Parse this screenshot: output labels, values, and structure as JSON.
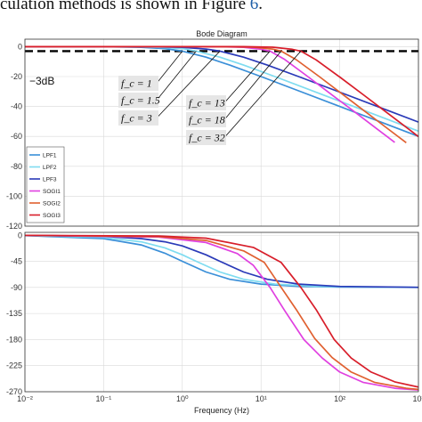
{
  "caption": {
    "text": "culation methods is shown in Figure ",
    "link": "6",
    "end": "."
  },
  "chart_data": [
    {
      "type": "line",
      "title": "Bode Diagram",
      "ylabel": "",
      "xscale": "log",
      "xlim": [
        0.01,
        1000
      ],
      "ylim": [
        -120,
        5
      ],
      "yticks": [
        0,
        -20,
        -40,
        -60,
        -80,
        -100,
        -120
      ],
      "grid": true,
      "legend_position": "bottom-left",
      "threshold": {
        "y": -3,
        "label": "−3dB",
        "style": "dashed",
        "color": "#000000"
      },
      "series": [
        {
          "name": "LPF1",
          "color": "#3a8fd8",
          "fc": 1,
          "kind": "first-order",
          "x": [
            0.01,
            0.1,
            0.3,
            0.6,
            1,
            2,
            4,
            10,
            30,
            100,
            300,
            1000
          ],
          "y": [
            0,
            -0.04,
            -0.4,
            -1.3,
            -3,
            -7,
            -12.3,
            -20,
            -29.5,
            -40,
            -49.5,
            -60
          ]
        },
        {
          "name": "LPF2",
          "color": "#7fdcf0",
          "fc": 1.5,
          "kind": "first-order",
          "x": [
            0.01,
            0.1,
            0.3,
            0.6,
            1,
            1.5,
            3,
            6,
            15,
            50,
            150,
            500,
            1000
          ],
          "y": [
            0,
            -0.02,
            -0.17,
            -0.6,
            -1.3,
            -3,
            -7,
            -12.3,
            -20,
            -30.5,
            -40,
            -50.5,
            -56.5
          ]
        },
        {
          "name": "LPF3",
          "color": "#2a3ab8",
          "fc": 3,
          "kind": "first-order",
          "x": [
            0.01,
            0.1,
            0.5,
            1,
            2,
            3,
            6,
            12,
            30,
            100,
            300,
            1000
          ],
          "y": [
            0,
            -0.005,
            -0.12,
            -0.46,
            -1.6,
            -3,
            -7,
            -12.3,
            -20,
            -30.4,
            -40,
            -50.4
          ]
        },
        {
          "name": "SOGI1",
          "color": "#e040e0",
          "fc": 13,
          "kind": "second-order",
          "x": [
            0.01,
            1,
            3,
            6,
            10,
            13,
            20,
            40,
            80,
            150,
            300,
            500
          ],
          "y": [
            0,
            -0.0,
            -0.05,
            -0.4,
            -1.7,
            -3,
            -8.6,
            -20.3,
            -32.3,
            -43.1,
            -55.2,
            -64
          ]
        },
        {
          "name": "SOGI2",
          "color": "#e06030",
          "fc": 18,
          "kind": "second-order",
          "x": [
            0.01,
            1,
            4,
            8,
            14,
            18,
            28,
            55,
            110,
            200,
            400,
            700
          ],
          "y": [
            0,
            -0.0,
            -0.04,
            -0.35,
            -1.6,
            -3,
            -8.7,
            -20,
            -32.1,
            -42.5,
            -54.5,
            -64.2
          ]
        },
        {
          "name": "SOGI3",
          "color": "#d81e2a",
          "fc": 32,
          "kind": "second-order",
          "x": [
            0.01,
            1,
            6,
            14,
            25,
            32,
            50,
            100,
            200,
            400,
            800,
            1000
          ],
          "y": [
            0,
            -0.0,
            -0.02,
            -0.38,
            -1.8,
            -3,
            -8.8,
            -20.3,
            -32.2,
            -44.2,
            -56.2,
            -60.1
          ]
        }
      ],
      "annotations": [
        {
          "text": "f_c = 1",
          "target_x": 1
        },
        {
          "text": "f_c = 1.5",
          "target_x": 1.5
        },
        {
          "text": "f_c = 3",
          "target_x": 3
        },
        {
          "text": "f_c = 13",
          "target_x": 13
        },
        {
          "text": "f_c = 18",
          "target_x": 18
        },
        {
          "text": "f_c = 32",
          "target_x": 32
        }
      ]
    },
    {
      "type": "line",
      "title": "",
      "xlabel": "Frequency  (Hz)",
      "ylabel": "",
      "xscale": "log",
      "xlim": [
        0.01,
        1000
      ],
      "ylim": [
        -270,
        5
      ],
      "yticks": [
        0,
        -45,
        -90,
        -135,
        -180,
        -225,
        -270
      ],
      "xticks": [
        "10⁻²",
        "10⁻¹",
        "10⁰",
        "10¹",
        "10²",
        "10³"
      ],
      "grid": true,
      "series": [
        {
          "name": "LPF1",
          "color": "#3a8fd8",
          "x": [
            0.01,
            0.1,
            0.3,
            0.6,
            1,
            2,
            4,
            10,
            30,
            100,
            1000
          ],
          "y": [
            -0.6,
            -5.7,
            -16.7,
            -31,
            -45,
            -63.4,
            -76,
            -84.3,
            -88.1,
            -89.4,
            -89.9
          ]
        },
        {
          "name": "LPF2",
          "color": "#7fdcf0",
          "x": [
            0.01,
            0.1,
            0.3,
            0.6,
            1,
            1.5,
            3,
            6,
            15,
            50,
            1000
          ],
          "y": [
            -0.4,
            -3.8,
            -11.3,
            -21.8,
            -33.7,
            -45,
            -63.4,
            -76,
            -84.3,
            -88.3,
            -89.9
          ]
        },
        {
          "name": "LPF3",
          "color": "#2a3ab8",
          "x": [
            0.01,
            0.1,
            0.3,
            0.6,
            1,
            2,
            3,
            6,
            12,
            30,
            100,
            1000
          ],
          "y": [
            -0.2,
            -1.9,
            -5.7,
            -11.3,
            -18.4,
            -33.7,
            -45,
            -63.4,
            -76,
            -84.3,
            -88.3,
            -89.8
          ]
        },
        {
          "name": "SOGI1",
          "color": "#e040e0",
          "x": [
            0.01,
            0.5,
            2,
            5,
            8,
            13,
            20,
            35,
            60,
            100,
            200,
            500,
            1000
          ],
          "y": [
            0,
            -3.1,
            -12.5,
            -31.5,
            -52,
            -90,
            -130,
            -180,
            -212,
            -236,
            -254,
            -264,
            -267
          ]
        },
        {
          "name": "SOGI2",
          "color": "#e06030",
          "x": [
            0.01,
            0.5,
            2,
            6,
            11,
            18,
            28,
            48,
            80,
            140,
            280,
            700,
            1000
          ],
          "y": [
            0,
            -2.3,
            -9,
            -27,
            -47,
            -90,
            -128,
            -178,
            -211,
            -236,
            -254,
            -264,
            -266
          ]
        },
        {
          "name": "SOGI3",
          "color": "#d81e2a",
          "x": [
            0.01,
            0.5,
            2,
            8,
            18,
            32,
            50,
            85,
            140,
            250,
            500,
            1000
          ],
          "y": [
            0,
            -1.3,
            -5,
            -21,
            -47,
            -90,
            -128,
            -180,
            -212,
            -236,
            -253,
            -262
          ]
        }
      ]
    }
  ]
}
